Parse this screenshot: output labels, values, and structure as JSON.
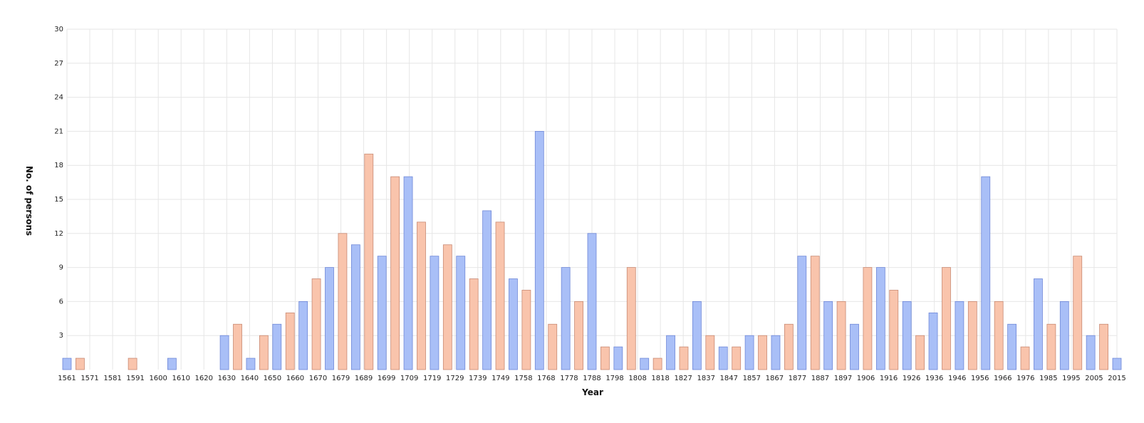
{
  "chart_data": {
    "type": "bar",
    "title": "",
    "xlabel": "Year",
    "ylabel": "No. of persons",
    "ylim": [
      0,
      30
    ],
    "yticks": [
      3,
      6,
      9,
      12,
      15,
      18,
      21,
      24,
      27,
      30
    ],
    "grid": true,
    "legend": "none",
    "colors": {
      "odd": "#a9bff7",
      "odd_border": "#6f88d8",
      "even": "#f9c4ac",
      "even_border": "#c88a74"
    },
    "xtick_labels": [
      "1561",
      "1571",
      "1581",
      "1591",
      "1600",
      "1610",
      "1620",
      "1630",
      "1640",
      "1650",
      "1660",
      "1670",
      "1679",
      "1689",
      "1699",
      "1709",
      "1719",
      "1729",
      "1739",
      "1749",
      "1758",
      "1768",
      "1778",
      "1788",
      "1798",
      "1808",
      "1818",
      "1827",
      "1837",
      "1847",
      "1857",
      "1867",
      "1877",
      "1887",
      "1897",
      "1906",
      "1916",
      "1926",
      "1936",
      "1946",
      "1956",
      "1966",
      "1976",
      "1985",
      "1995",
      "2005",
      "2015"
    ],
    "values": [
      1,
      1,
      0,
      0,
      0,
      1,
      0,
      0,
      1,
      0,
      0,
      0,
      3,
      4,
      1,
      3,
      4,
      5,
      6,
      8,
      9,
      12,
      11,
      19,
      10,
      17,
      17,
      13,
      10,
      11,
      10,
      8,
      14,
      13,
      8,
      7,
      21,
      4,
      9,
      6,
      12,
      2,
      2,
      9,
      1,
      1,
      3,
      2,
      6,
      3,
      2,
      2,
      3,
      3,
      3,
      4,
      10,
      10,
      6,
      6,
      4,
      9,
      9,
      7,
      6,
      3,
      5,
      9,
      6,
      6,
      17,
      6,
      4,
      2,
      8,
      4,
      6,
      10,
      3,
      4,
      1
    ]
  }
}
